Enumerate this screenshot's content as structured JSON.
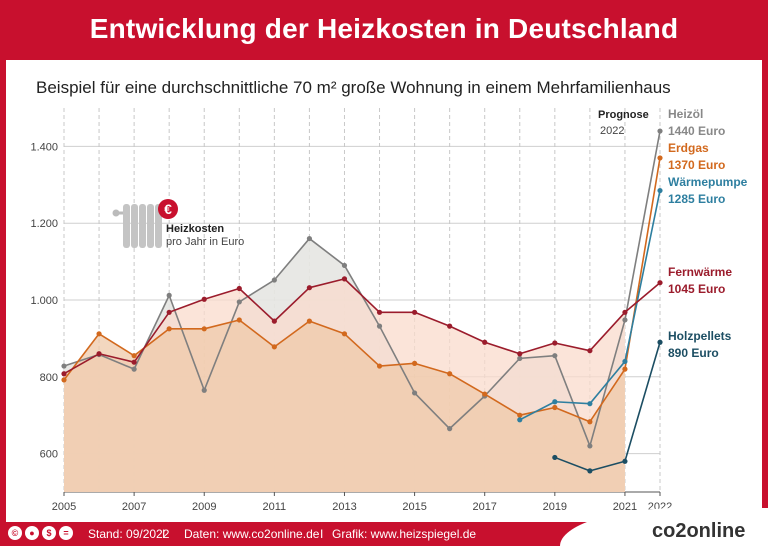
{
  "header": {
    "title": "Entwicklung der Heizkosten in Deutschland"
  },
  "subtitle": "Beispiel für eine durchschnittliche 70 m² große Wohnung in einem Mehrfamilienhaus",
  "legend_box": {
    "title": "Heizkosten",
    "subtitle": "pro Jahr in Euro",
    "badge": "€"
  },
  "prognose": {
    "label": "Prognose",
    "year": "2022"
  },
  "footer": {
    "stand": "Stand: 09/2022",
    "separator": "I",
    "daten": "Daten: www.co2online.de",
    "grafik": "Grafik: www.heizspiegel.de",
    "brand": "co2online",
    "cc_icons": [
      "cc",
      "by",
      "nc",
      "sa"
    ]
  },
  "chart_data": {
    "type": "line",
    "x_ticks": [
      "2005",
      "2007",
      "2009",
      "2011",
      "2013",
      "2015",
      "2017",
      "2019",
      "2021",
      "2022"
    ],
    "y_ticks": [
      "600",
      "800",
      "1.000",
      "1.200",
      "1.400"
    ],
    "ylim": [
      500,
      1500
    ],
    "xlim": [
      2005,
      2022
    ],
    "grid": true,
    "series": [
      {
        "name": "Heizöl",
        "value_label": "1440 Euro",
        "color": "#7f7f7f",
        "fill": "#e6e6e2",
        "x": [
          2005,
          2006,
          2007,
          2008,
          2009,
          2010,
          2011,
          2012,
          2013,
          2014,
          2015,
          2016,
          2017,
          2018,
          2019,
          2020,
          2021,
          2022
        ],
        "values": [
          828,
          858,
          820,
          1012,
          765,
          995,
          1052,
          1160,
          1090,
          932,
          758,
          665,
          750,
          848,
          855,
          620,
          948,
          1440
        ]
      },
      {
        "name": "Erdgas",
        "value_label": "1370 Euro",
        "color": "#d2691e",
        "fill": "#efc9a9",
        "x": [
          2005,
          2006,
          2007,
          2008,
          2009,
          2010,
          2011,
          2012,
          2013,
          2014,
          2015,
          2016,
          2017,
          2018,
          2019,
          2020,
          2021,
          2022
        ],
        "values": [
          792,
          912,
          855,
          925,
          925,
          948,
          878,
          945,
          912,
          828,
          835,
          808,
          755,
          700,
          720,
          683,
          820,
          1370
        ]
      },
      {
        "name": "Wärmepumpe",
        "value_label": "1285 Euro",
        "color": "#2e7fa0",
        "x": [
          2018,
          2019,
          2020,
          2021,
          2022
        ],
        "values": [
          688,
          735,
          730,
          840,
          1285
        ]
      },
      {
        "name": "Fernwärme",
        "value_label": "1045 Euro",
        "color": "#9b1c2c",
        "fill": "#f9dbcc",
        "x": [
          2005,
          2006,
          2007,
          2008,
          2009,
          2010,
          2011,
          2012,
          2013,
          2014,
          2015,
          2016,
          2017,
          2018,
          2019,
          2020,
          2021,
          2022
        ],
        "values": [
          808,
          860,
          838,
          968,
          1002,
          1030,
          945,
          1032,
          1055,
          968,
          968,
          932,
          890,
          860,
          888,
          868,
          968,
          1045
        ]
      },
      {
        "name": "Holzpellets",
        "value_label": "890 Euro",
        "color": "#1c4e63",
        "x": [
          2019,
          2020,
          2021,
          2022
        ],
        "values": [
          590,
          555,
          580,
          890
        ]
      }
    ]
  }
}
